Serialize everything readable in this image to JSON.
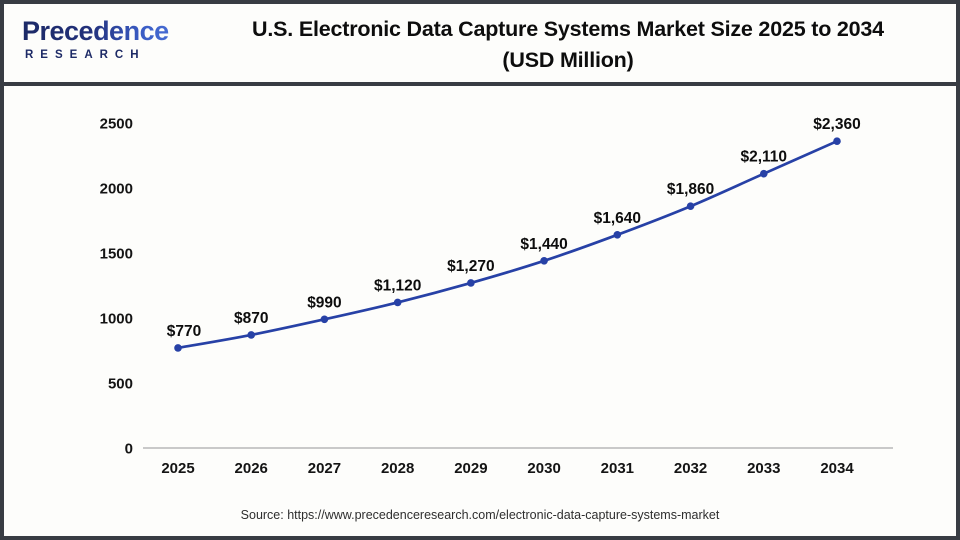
{
  "header": {
    "logo": {
      "line1": "Precedence",
      "line2": "RESEARCH"
    },
    "title_line1": "U.S. Electronic Data Capture Systems Market Size 2025 to 2034",
    "title_line2": "(USD Million)"
  },
  "chart_data": {
    "type": "line",
    "categories": [
      "2025",
      "2026",
      "2027",
      "2028",
      "2029",
      "2030",
      "2031",
      "2032",
      "2033",
      "2034"
    ],
    "values": [
      770,
      870,
      990,
      1120,
      1270,
      1440,
      1640,
      1860,
      2110,
      2360
    ],
    "point_labels": [
      "$770",
      "$870",
      "$990",
      "$1,120",
      "$1,270",
      "$1,440",
      "$1,640",
      "$1,860",
      "$2,110",
      "$2,360"
    ],
    "title": "U.S. Electronic Data Capture Systems Market Size 2025 to 2034 (USD Million)",
    "xlabel": "",
    "ylabel": "",
    "ylim": [
      0,
      2500
    ],
    "yticks": [
      0,
      500,
      1000,
      1500,
      2000,
      2500
    ],
    "grid": false,
    "legend": "none",
    "line_color": "#2741a6",
    "marker_color": "#2741a6",
    "axis_line_color": "#c9c9c9",
    "tick_label_color": "#141414",
    "data_label_color": "#0d0d0d"
  },
  "footer": {
    "source": "Source: https://www.precedenceresearch.com/electronic-data-capture-systems-market"
  }
}
